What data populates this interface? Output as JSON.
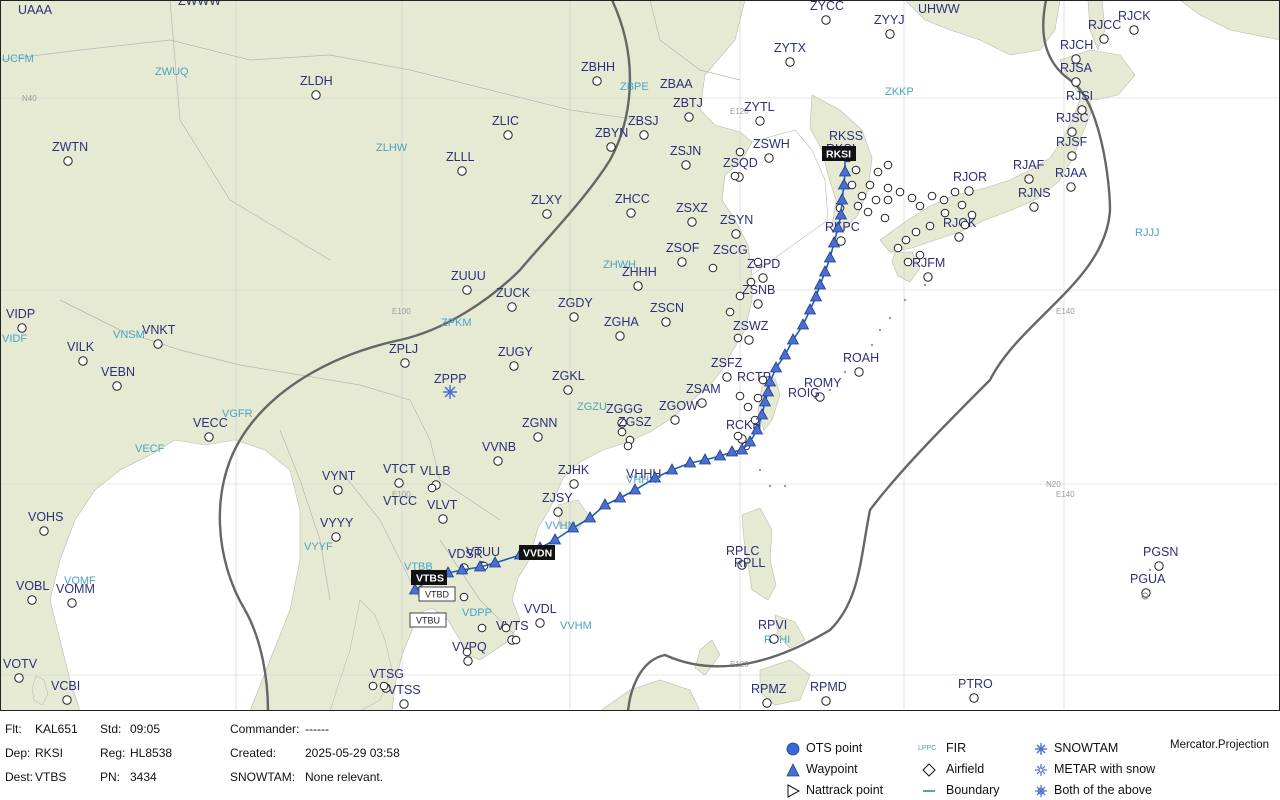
{
  "map": {
    "projection_label": "Mercator.Projection",
    "grid_labels": [
      "N40",
      "E100",
      "E120",
      "E140",
      "N20",
      "E140",
      "E100",
      "E120"
    ],
    "airports": [
      {
        "code": "UAAA"
      },
      {
        "code": "ZWWW"
      },
      {
        "code": "ZLDH"
      },
      {
        "code": "ZWTN"
      },
      {
        "code": "ZLIC"
      },
      {
        "code": "ZLLL"
      },
      {
        "code": "ZLXY"
      },
      {
        "code": "ZUUU"
      },
      {
        "code": "ZUCK"
      },
      {
        "code": "ZPLJ"
      },
      {
        "code": "ZPPP"
      },
      {
        "code": "ZUGY"
      },
      {
        "code": "ZGKL"
      },
      {
        "code": "ZGNN"
      },
      {
        "code": "ZGGG"
      },
      {
        "code": "ZGSZ"
      },
      {
        "code": "ZGOW"
      },
      {
        "code": "ZSAM"
      },
      {
        "code": "ZGHA"
      },
      {
        "code": "ZSCN"
      },
      {
        "code": "ZGDY"
      },
      {
        "code": "ZHHH"
      },
      {
        "code": "ZSOF"
      },
      {
        "code": "ZHCC"
      },
      {
        "code": "ZSXZ"
      },
      {
        "code": "ZSJN"
      },
      {
        "code": "ZBYN"
      },
      {
        "code": "ZBSJ"
      },
      {
        "code": "ZBTJ"
      },
      {
        "code": "ZBAA"
      },
      {
        "code": "ZBHH"
      },
      {
        "code": "ZYTL"
      },
      {
        "code": "ZYTX"
      },
      {
        "code": "ZYYJ"
      },
      {
        "code": "ZYCC"
      },
      {
        "code": "UHWW"
      },
      {
        "code": "ZSQD"
      },
      {
        "code": "ZSWH"
      },
      {
        "code": "ZSYN"
      },
      {
        "code": "ZSCG"
      },
      {
        "code": "ZSPD"
      },
      {
        "code": "ZSNB"
      },
      {
        "code": "ZSWZ"
      },
      {
        "code": "ZSFZ"
      },
      {
        "code": "RCTP"
      },
      {
        "code": "RCKH"
      },
      {
        "code": "ROAH"
      },
      {
        "code": "ROMY"
      },
      {
        "code": "ROIG"
      },
      {
        "code": "RKSS"
      },
      {
        "code": "RKSI"
      },
      {
        "code": "RKPC"
      },
      {
        "code": "RJOR"
      },
      {
        "code": "RJAF"
      },
      {
        "code": "RJNS"
      },
      {
        "code": "RJAA"
      },
      {
        "code": "RJSF"
      },
      {
        "code": "RJSC"
      },
      {
        "code": "RJSI"
      },
      {
        "code": "RJSA"
      },
      {
        "code": "RJCH"
      },
      {
        "code": "RJCC"
      },
      {
        "code": "RJCK"
      },
      {
        "code": "RJOK"
      },
      {
        "code": "RJFM"
      },
      {
        "code": "VHHH"
      },
      {
        "code": "VVNB"
      },
      {
        "code": "ZJHK"
      },
      {
        "code": "ZJSY"
      },
      {
        "code": "VVDN"
      },
      {
        "code": "VTUU"
      },
      {
        "code": "VTBS"
      },
      {
        "code": "VTBD"
      },
      {
        "code": "VTBU"
      },
      {
        "code": "VDSR"
      },
      {
        "code": "VVTS"
      },
      {
        "code": "VVDL"
      },
      {
        "code": "VVPQ"
      },
      {
        "code": "VTSG"
      },
      {
        "code": "VTSS"
      },
      {
        "code": "VLVT"
      },
      {
        "code": "VLLB"
      },
      {
        "code": "VTCT"
      },
      {
        "code": "VTCC"
      },
      {
        "code": "VYNT"
      },
      {
        "code": "VYYY"
      },
      {
        "code": "VECC"
      },
      {
        "code": "VEBN"
      },
      {
        "code": "VNKT"
      },
      {
        "code": "VILK"
      },
      {
        "code": "VIDP"
      },
      {
        "code": "VOHS"
      },
      {
        "code": "VOBL"
      },
      {
        "code": "VOMM"
      },
      {
        "code": "VOTV"
      },
      {
        "code": "VCBI"
      },
      {
        "code": "RPLC"
      },
      {
        "code": "RPLL"
      },
      {
        "code": "RPVI"
      },
      {
        "code": "RPMZ"
      },
      {
        "code": "RPMD"
      },
      {
        "code": "PTRO"
      },
      {
        "code": "PGSN"
      },
      {
        "code": "PGUA"
      },
      {
        "code": "RJJJ"
      }
    ],
    "fir_labels": [
      "UCFM",
      "ZWUQ",
      "ZLHW",
      "ZBPE",
      "ZKKP",
      "ZHWH",
      "ZPKM",
      "VNSM",
      "VIDF",
      "VGFR",
      "VECF",
      "ZGZU",
      "VHHK",
      "VVHN",
      "VTBB",
      "VYYF",
      "VDPP",
      "VVHM",
      "VOMF",
      "RPHI"
    ],
    "route_tags": {
      "origin": "RKSI",
      "destination": "VTBS",
      "waypoint_tag": "VVDN",
      "alt1": "VTBD",
      "alt2": "VTBU"
    }
  },
  "footer": {
    "flt_label": "Flt:",
    "flt_value": "KAL651",
    "std_label": "Std:",
    "std_value": "09:05",
    "commander_label": "Commander:",
    "commander_value": "------",
    "dep_label": "Dep:",
    "dep_value": "RKSI",
    "reg_label": "Reg:",
    "reg_value": "HL8538",
    "created_label": "Created:",
    "created_value": "2025-05-29 03:58",
    "dest_label": "Dest:",
    "dest_value": "VTBS",
    "pn_label": "PN:",
    "pn_value": "3434",
    "snowtam_label": "SNOWTAM:",
    "snowtam_value": "None relevant."
  },
  "legend": {
    "ots_point": "OTS point",
    "waypoint": "Waypoint",
    "nattrack_point": "Nattrack point",
    "fir_sample": "LPPC",
    "fir": "FIR",
    "airfield": "Airfield",
    "boundary": "Boundary",
    "snowtam": "SNOWTAM",
    "metar_snow": "METAR with snow",
    "both": "Both of the above",
    "projection": "Mercator.Projection"
  },
  "colors": {
    "land": "#e6ead3",
    "sea": "#ffffff",
    "route": "#1d5fae",
    "waypoint": "#4a6fd0",
    "fir_text": "#4aa3c4",
    "airport_text": "#2d2f78",
    "etops_circle": "#666666"
  }
}
